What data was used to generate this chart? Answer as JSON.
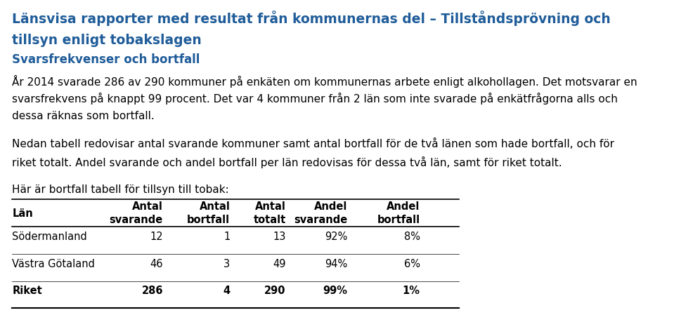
{
  "title_line1": "Länsvisa rapporter med resultat från kommunernas del – Tillståndsprövning och",
  "title_line2": "tillsyn enligt tobakslagen",
  "subtitle": "Svarsfrekvenser och bortfall",
  "body_text1": "År 2014 svarade 286 av 290 kommuner på enkäten om kommunernas arbete enligt alkohollagen. Det motsvarar en\nsvarsfrekvens på knappt 99 procent. Det var 4 kommuner från 2 län som inte svarade på enkätfrågorna alls och\ndessa räknas som bortfall.",
  "body_text2": "Nedan tabell redovisar antal svarande kommuner samt antal bortfall för de två länen som hade bortfall, och för\nriket totalt. Andel svarande och andel bortfall per län redovisas för dessa två län, samt för riket totalt.",
  "table_label": "Här är bortfall tabell för tillsyn till tobak:",
  "col_headers": [
    "Antal\nsvarande",
    "Antal\nbortfall",
    "Antal\ntotalt",
    "Andel\nsvarande",
    "Andel\nbortfall"
  ],
  "row_label_header": "Län",
  "rows": [
    [
      "Södermanland",
      "12",
      "1",
      "13",
      "92%",
      "8%"
    ],
    [
      "Västra Götaland",
      "46",
      "3",
      "49",
      "94%",
      "6%"
    ],
    [
      "Riket",
      "286",
      "4",
      "290",
      "99%",
      "1%"
    ]
  ],
  "title_color": "#1F5C99",
  "subtitle_color": "#1F5C99",
  "body_color": "#000000",
  "background_color": "#ffffff",
  "title_fontsize": 13.5,
  "subtitle_fontsize": 12,
  "body_fontsize": 11,
  "table_fontsize": 10.5
}
